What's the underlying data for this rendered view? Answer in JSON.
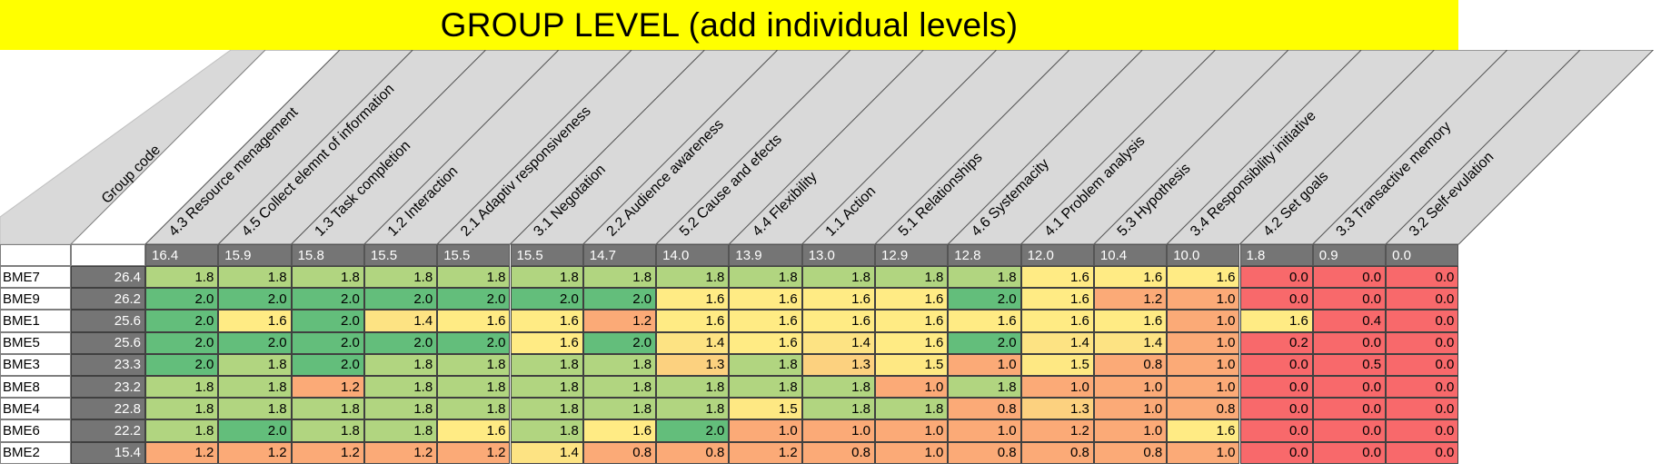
{
  "title": "GROUP LEVEL (add individual levels)",
  "group_code_label": "Group code",
  "columns": [
    {
      "label": "4.3 Resource menagement",
      "avg": "16.4"
    },
    {
      "label": "4.5 Collect elemnt of information",
      "avg": "15.9"
    },
    {
      "label": "1.3 Task completion",
      "avg": "15.8"
    },
    {
      "label": "1.2 Interaction",
      "avg": "15.5"
    },
    {
      "label": "2.1 Adaptiv responsiveness",
      "avg": "15.5"
    },
    {
      "label": "3.1 Negotation",
      "avg": "15.5"
    },
    {
      "label": "2.2 Audience awareness",
      "avg": "14.7"
    },
    {
      "label": "5.2 Cause and efects",
      "avg": "14.0"
    },
    {
      "label": "4.4 Flexibility",
      "avg": "13.9"
    },
    {
      "label": "1.1 Action",
      "avg": "13.0"
    },
    {
      "label": "5.1 Relationships",
      "avg": "12.9"
    },
    {
      "label": "4.6 Systemacity",
      "avg": "12.8"
    },
    {
      "label": "4.1 Problem analysis",
      "avg": "12.0"
    },
    {
      "label": "5.3 Hypothesis",
      "avg": "10.4"
    },
    {
      "label": "3.4 Responsibility initiative",
      "avg": "10.0"
    },
    {
      "label": "4.2 Set goals",
      "avg": "1.8"
    },
    {
      "label": "3.3 Transactive memory",
      "avg": "0.9"
    },
    {
      "label": "3.2 Self-evulation",
      "avg": "0.0"
    }
  ],
  "rows": [
    {
      "code": "BME7",
      "total": "26.4",
      "values": [
        "1.8",
        "1.8",
        "1.8",
        "1.8",
        "1.8",
        "1.8",
        "1.8",
        "1.8",
        "1.8",
        "1.8",
        "1.8",
        "1.8",
        "1.6",
        "1.6",
        "1.6",
        "0.0",
        "0.0",
        "0.0"
      ]
    },
    {
      "code": "BME9",
      "total": "26.2",
      "values": [
        "2.0",
        "2.0",
        "2.0",
        "2.0",
        "2.0",
        "2.0",
        "2.0",
        "1.6",
        "1.6",
        "1.6",
        "1.6",
        "2.0",
        "1.6",
        "1.2",
        "1.0",
        "0.0",
        "0.0",
        "0.0"
      ]
    },
    {
      "code": "BME1",
      "total": "25.6",
      "values": [
        "2.0",
        "1.6",
        "2.0",
        "1.4",
        "1.6",
        "1.6",
        "1.2",
        "1.6",
        "1.6",
        "1.6",
        "1.6",
        "1.6",
        "1.6",
        "1.6",
        "1.0",
        "1.6",
        "0.4",
        "0.0"
      ]
    },
    {
      "code": "BME5",
      "total": "25.6",
      "values": [
        "2.0",
        "2.0",
        "2.0",
        "2.0",
        "2.0",
        "1.6",
        "2.0",
        "1.4",
        "1.6",
        "1.4",
        "1.6",
        "2.0",
        "1.4",
        "1.4",
        "1.0",
        "0.2",
        "0.0",
        "0.0"
      ]
    },
    {
      "code": "BME3",
      "total": "23.3",
      "values": [
        "2.0",
        "1.8",
        "2.0",
        "1.8",
        "1.8",
        "1.8",
        "1.8",
        "1.3",
        "1.8",
        "1.3",
        "1.5",
        "1.0",
        "1.5",
        "0.8",
        "1.0",
        "0.0",
        "0.5",
        "0.0"
      ]
    },
    {
      "code": "BME8",
      "total": "23.2",
      "values": [
        "1.8",
        "1.8",
        "1.2",
        "1.8",
        "1.8",
        "1.8",
        "1.8",
        "1.8",
        "1.8",
        "1.8",
        "1.0",
        "1.8",
        "1.0",
        "1.0",
        "1.0",
        "0.0",
        "0.0",
        "0.0"
      ]
    },
    {
      "code": "BME4",
      "total": "22.8",
      "values": [
        "1.8",
        "1.8",
        "1.8",
        "1.8",
        "1.8",
        "1.8",
        "1.8",
        "1.8",
        "1.5",
        "1.8",
        "1.8",
        "0.8",
        "1.3",
        "1.0",
        "0.8",
        "0.0",
        "0.0",
        "0.0"
      ]
    },
    {
      "code": "BME6",
      "total": "22.2",
      "values": [
        "1.8",
        "2.0",
        "1.8",
        "1.8",
        "1.6",
        "1.8",
        "1.6",
        "2.0",
        "1.0",
        "1.0",
        "1.0",
        "1.0",
        "1.2",
        "1.0",
        "1.6",
        "0.0",
        "0.0",
        "0.0"
      ]
    },
    {
      "code": "BME2",
      "total": "15.4",
      "values": [
        "1.2",
        "1.2",
        "1.2",
        "1.2",
        "1.2",
        "1.4",
        "0.8",
        "0.8",
        "1.2",
        "0.8",
        "1.0",
        "0.8",
        "0.8",
        "0.8",
        "1.0",
        "0.0",
        "0.0",
        "0.0"
      ]
    }
  ],
  "colors": {
    "title_bg": "#ffff00",
    "header_gray": "#d9d9d9",
    "avg_gray": "#757575",
    "scale": {
      "0.0": "#f8696b",
      "0.2": "#f8696b",
      "0.4": "#f8696b",
      "0.5": "#f8696b",
      "0.8": "#fbaa77",
      "1.0": "#fbaa77",
      "1.2": "#fbaa77",
      "1.3": "#fcd17f",
      "1.4": "#fde383",
      "1.5": "#fee883",
      "1.6": "#ffeb84",
      "1.8": "#b1d580",
      "2.0": "#63be7b"
    }
  }
}
